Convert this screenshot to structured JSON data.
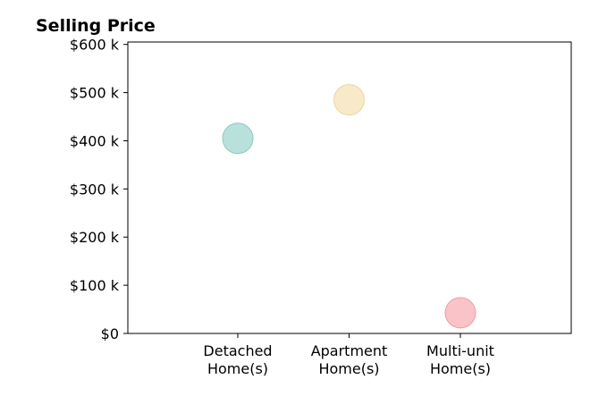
{
  "chart_data": {
    "type": "scatter",
    "title": "Selling Price",
    "xlabel": "",
    "ylabel": "",
    "categories": [
      [
        "Detached",
        "Home(s)"
      ],
      [
        "Apartment",
        "Home(s)"
      ],
      [
        "Multi-unit",
        "Home(s)"
      ]
    ],
    "values": [
      405,
      485,
      43
    ],
    "value_unit": "thousand USD",
    "ylim": [
      0,
      605
    ],
    "yticks": [
      0,
      100,
      200,
      300,
      400,
      500,
      600
    ],
    "ytick_labels": [
      "$0",
      "$100 k",
      "$200 k",
      "$300 k",
      "$400 k",
      "$500 k",
      "$600 k"
    ],
    "grid": false,
    "legend": "none",
    "colors": {
      "point_fills": [
        "#a8dad3",
        "#f6e3bb",
        "#f8b4b9"
      ],
      "point_strokes": [
        "#8fc8c1",
        "#ecd3a5",
        "#ee9da4"
      ],
      "axis": "#000000"
    }
  }
}
